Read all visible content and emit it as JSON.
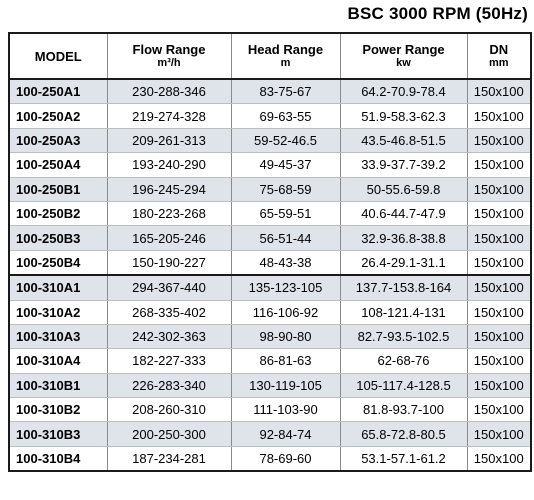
{
  "title": "BSC 3000 RPM (50Hz)",
  "table": {
    "columns": [
      {
        "name": "MODEL",
        "unit": ""
      },
      {
        "name": "Flow Range",
        "unit": "m³/h"
      },
      {
        "name": "Head Range",
        "unit": "m"
      },
      {
        "name": "Power Range",
        "unit": "kw"
      },
      {
        "name": "DN",
        "unit": "mm"
      }
    ],
    "rows": [
      {
        "model": "100-250A1",
        "flow": "230-288-346",
        "head": "83-75-67",
        "power": "64.2-70.9-78.4",
        "dn": "150x100"
      },
      {
        "model": "100-250A2",
        "flow": "219-274-328",
        "head": "69-63-55",
        "power": "51.9-58.3-62.3",
        "dn": "150x100"
      },
      {
        "model": "100-250A3",
        "flow": "209-261-313",
        "head": "59-52-46.5",
        "power": "43.5-46.8-51.5",
        "dn": "150x100"
      },
      {
        "model": "100-250A4",
        "flow": "193-240-290",
        "head": "49-45-37",
        "power": "33.9-37.7-39.2",
        "dn": "150x100"
      },
      {
        "model": "100-250B1",
        "flow": "196-245-294",
        "head": "75-68-59",
        "power": "50-55.6-59.8",
        "dn": "150x100"
      },
      {
        "model": "100-250B2",
        "flow": "180-223-268",
        "head": "65-59-51",
        "power": "40.6-44.7-47.9",
        "dn": "150x100"
      },
      {
        "model": "100-250B3",
        "flow": "165-205-246",
        "head": "56-51-44",
        "power": "32.9-36.8-38.8",
        "dn": "150x100"
      },
      {
        "model": "100-250B4",
        "flow": "150-190-227",
        "head": "48-43-38",
        "power": "26.4-29.1-31.1",
        "dn": "150x100"
      },
      {
        "model": "100-310A1",
        "flow": "294-367-440",
        "head": "135-123-105",
        "power": "137.7-153.8-164",
        "dn": "150x100"
      },
      {
        "model": "100-310A2",
        "flow": "268-335-402",
        "head": "116-106-92",
        "power": "108-121.4-131",
        "dn": "150x100"
      },
      {
        "model": "100-310A3",
        "flow": "242-302-363",
        "head": "98-90-80",
        "power": "82.7-93.5-102.5",
        "dn": "150x100"
      },
      {
        "model": "100-310A4",
        "flow": "182-227-333",
        "head": "86-81-63",
        "power": "62-68-76",
        "dn": "150x100"
      },
      {
        "model": "100-310B1",
        "flow": "226-283-340",
        "head": "130-119-105",
        "power": "105-117.4-128.5",
        "dn": "150x100"
      },
      {
        "model": "100-310B2",
        "flow": "208-260-310",
        "head": "111-103-90",
        "power": "81.8-93.7-100",
        "dn": "150x100"
      },
      {
        "model": "100-310B3",
        "flow": "200-250-300",
        "head": "92-84-74",
        "power": "65.8-72.8-80.5",
        "dn": "150x100"
      },
      {
        "model": "100-310B4",
        "flow": "187-234-281",
        "head": "78-69-60",
        "power": "53.1-57.1-61.2",
        "dn": "150x100"
      }
    ]
  }
}
